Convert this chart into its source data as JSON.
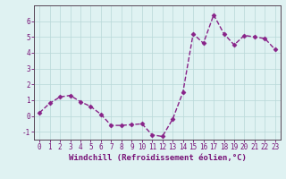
{
  "x": [
    0,
    1,
    2,
    3,
    4,
    5,
    6,
    7,
    8,
    9,
    10,
    11,
    12,
    13,
    14,
    15,
    16,
    17,
    18,
    19,
    20,
    21,
    22,
    23
  ],
  "y": [
    0.2,
    0.8,
    1.2,
    1.3,
    0.9,
    0.6,
    0.1,
    -0.6,
    -0.6,
    -0.55,
    -0.5,
    -1.2,
    -1.3,
    -0.2,
    1.5,
    5.2,
    4.6,
    6.4,
    5.2,
    4.5,
    5.1,
    5.0,
    4.9,
    4.2
  ],
  "line_color": "#882288",
  "marker": "D",
  "markersize": 2.5,
  "linewidth": 1.0,
  "xlabel": "Windchill (Refroidissement éolien,°C)",
  "xlabel_fontsize": 6.5,
  "ylim": [
    -1.5,
    7.0
  ],
  "xlim": [
    -0.5,
    23.5
  ],
  "yticks": [
    -1,
    0,
    1,
    2,
    3,
    4,
    5,
    6
  ],
  "xticks": [
    0,
    1,
    2,
    3,
    4,
    5,
    6,
    7,
    8,
    9,
    10,
    11,
    12,
    13,
    14,
    15,
    16,
    17,
    18,
    19,
    20,
    21,
    22,
    23
  ],
  "tick_fontsize": 5.5,
  "bg_color": "#dff2f2",
  "grid_color": "#b8d8d8",
  "axes_color": "#771177",
  "spine_color": "#554455",
  "linestyle": "--"
}
